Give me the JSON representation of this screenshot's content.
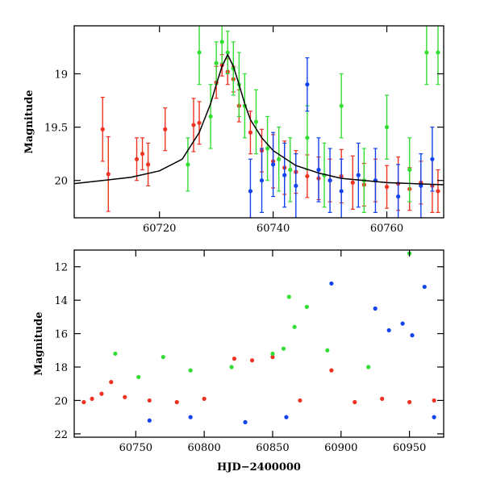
{
  "chart_data": [
    {
      "type": "scatter",
      "panel": "top",
      "title": "",
      "xlabel": "",
      "ylabel": "Magnitude",
      "xlim": [
        60705,
        60770
      ],
      "ylim": [
        20.35,
        18.55
      ],
      "yaxis_inverted": true,
      "xticks": [
        60720,
        60740,
        60760
      ],
      "xtick_labels": [
        "60720",
        "60740",
        "60760"
      ],
      "yticks": [
        19,
        19.5,
        20
      ],
      "ytick_labels": [
        "19",
        "19.5",
        "20"
      ],
      "colors": {
        "red": "#ee3322",
        "green": "#33dd33",
        "blue": "#1144ee",
        "fit": "#000000"
      },
      "series": [
        {
          "name": "red",
          "color": "#ee3322",
          "x": [
            60710,
            60711,
            60716,
            60717,
            60718,
            60721,
            60726,
            60727,
            60730,
            60731,
            60732,
            60733,
            60734,
            60736,
            60738,
            60740,
            60742,
            60744,
            60746,
            60748,
            60750,
            60752,
            60754,
            60756,
            60758,
            60760,
            60762,
            60764,
            60766,
            60768,
            60769
          ],
          "y": [
            19.52,
            19.94,
            19.8,
            19.75,
            19.85,
            19.52,
            19.48,
            19.46,
            19.08,
            18.92,
            18.98,
            19.05,
            19.3,
            19.55,
            19.72,
            19.82,
            19.88,
            19.92,
            19.96,
            19.98,
            20.0,
            19.96,
            20.02,
            20.04,
            20.0,
            20.06,
            20.03,
            20.08,
            20.02,
            20.05,
            20.1
          ],
          "err": [
            0.3,
            0.35,
            0.2,
            0.15,
            0.2,
            0.2,
            0.25,
            0.2,
            0.15,
            0.1,
            0.12,
            0.12,
            0.15,
            0.2,
            0.2,
            0.25,
            0.25,
            0.2,
            0.2,
            0.2,
            0.2,
            0.25,
            0.25,
            0.2,
            0.2,
            0.2,
            0.25,
            0.2,
            0.2,
            0.25,
            0.2
          ]
        },
        {
          "name": "green",
          "color": "#33dd33",
          "x": [
            60725,
            60727,
            60729,
            60730,
            60731,
            60732,
            60733,
            60734,
            60735,
            60737,
            60739,
            60741,
            60743,
            60746,
            60749,
            60752,
            60756,
            60760,
            60764,
            60767,
            60769
          ],
          "y": [
            19.85,
            18.8,
            19.4,
            18.9,
            18.7,
            18.8,
            18.95,
            19.1,
            19.3,
            19.45,
            19.7,
            19.8,
            19.9,
            19.6,
            19.95,
            19.3,
            20.0,
            19.5,
            19.9,
            18.8,
            18.8
          ],
          "err": [
            0.25,
            0.3,
            0.3,
            0.2,
            0.2,
            0.2,
            0.25,
            0.3,
            0.3,
            0.3,
            0.3,
            0.3,
            0.3,
            0.3,
            0.3,
            0.3,
            0.3,
            0.3,
            0.3,
            0.3,
            0.3
          ]
        },
        {
          "name": "blue",
          "color": "#1144ee",
          "x": [
            60736,
            60738,
            60740,
            60742,
            60744,
            60746,
            60748,
            60750,
            60752,
            60755,
            60758,
            60762,
            60766,
            60768
          ],
          "y": [
            20.1,
            20.0,
            19.85,
            19.95,
            20.05,
            19.1,
            19.9,
            20.0,
            20.1,
            19.95,
            20.0,
            20.15,
            20.05,
            19.8
          ],
          "err": [
            0.3,
            0.3,
            0.3,
            0.3,
            0.3,
            0.25,
            0.3,
            0.3,
            0.3,
            0.3,
            0.3,
            0.3,
            0.3,
            0.3
          ]
        }
      ],
      "fit_curve": {
        "name": "model",
        "color": "#000000",
        "x": [
          60705,
          60710,
          60715,
          60720,
          60724,
          60727,
          60729,
          60730,
          60731,
          60732,
          60733,
          60734,
          60735,
          60736,
          60738,
          60740,
          60744,
          60748,
          60752,
          60756,
          60760,
          60765,
          60770
        ],
        "y": [
          20.03,
          20.0,
          19.97,
          19.91,
          19.8,
          19.55,
          19.28,
          19.1,
          18.93,
          18.82,
          18.93,
          19.1,
          19.28,
          19.43,
          19.6,
          19.72,
          19.86,
          19.93,
          19.98,
          20.0,
          20.02,
          20.03,
          20.04
        ]
      }
    },
    {
      "type": "scatter",
      "panel": "bottom",
      "title": "",
      "xlabel": "HJD−2400000",
      "ylabel": "Magnitude",
      "xlim": [
        60705,
        60975
      ],
      "ylim": [
        22.2,
        11.0
      ],
      "yaxis_inverted": true,
      "xticks": [
        60750,
        60800,
        60850,
        60900,
        60950
      ],
      "xtick_labels": [
        "60750",
        "60800",
        "60850",
        "60900",
        "60950"
      ],
      "yticks": [
        12,
        14,
        16,
        18,
        20,
        22
      ],
      "ytick_labels": [
        "12",
        "14",
        "16",
        "18",
        "20",
        "22"
      ],
      "series": [
        {
          "name": "red",
          "color": "#ee3322",
          "x": [
            60712,
            60718,
            60725,
            60732,
            60742,
            60760,
            60780,
            60800,
            60822,
            60835,
            60850,
            60870,
            60893,
            60910,
            60930,
            60950,
            60968
          ],
          "y": [
            20.1,
            19.9,
            19.6,
            18.9,
            19.8,
            20.0,
            20.1,
            19.9,
            17.5,
            17.6,
            17.4,
            20.0,
            18.2,
            20.1,
            19.9,
            20.1,
            20.0
          ]
        },
        {
          "name": "green",
          "color": "#33dd33",
          "x": [
            60735,
            60752,
            60770,
            60790,
            60820,
            60850,
            60858,
            60862,
            60866,
            60875,
            60890,
            60920,
            60950
          ],
          "y": [
            17.2,
            18.6,
            17.4,
            18.2,
            18.0,
            17.2,
            16.9,
            13.8,
            15.6,
            14.4,
            17.0,
            18.0,
            11.2
          ]
        },
        {
          "name": "blue",
          "color": "#1144ee",
          "x": [
            60760,
            60790,
            60830,
            60860,
            60893,
            60925,
            60935,
            60945,
            60952,
            60961,
            60968
          ],
          "y": [
            21.2,
            21.0,
            21.3,
            21.0,
            13.0,
            14.5,
            15.8,
            15.4,
            16.1,
            13.2,
            21.0
          ]
        }
      ]
    }
  ]
}
